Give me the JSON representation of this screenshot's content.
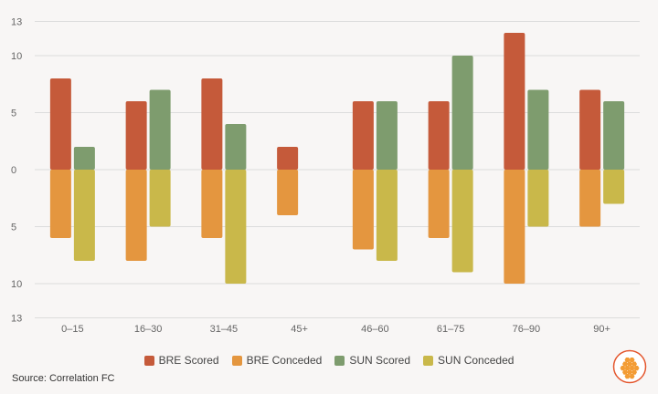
{
  "chart_data": {
    "type": "bar",
    "categories": [
      "0–15",
      "16–30",
      "31–45",
      "45+",
      "46–60",
      "61–75",
      "76–90",
      "90+"
    ],
    "yticks": [
      {
        "value": 13,
        "label": "13"
      },
      {
        "value": 10,
        "label": "10"
      },
      {
        "value": 5,
        "label": "5"
      },
      {
        "value": 0,
        "label": "0"
      },
      {
        "value": -5,
        "label": "5"
      },
      {
        "value": -10,
        "label": "10"
      },
      {
        "value": -13,
        "label": "13"
      }
    ],
    "ylim": [
      -13,
      13
    ],
    "series": [
      {
        "name": "BRE Scored",
        "color": "#c55a3a",
        "values": [
          8,
          6,
          8,
          2,
          6,
          6,
          12,
          7
        ]
      },
      {
        "name": "BRE Conceded",
        "color": "#e4963f",
        "values": [
          6,
          8,
          6,
          4,
          7,
          6,
          10,
          5
        ]
      },
      {
        "name": "SUN Scored",
        "color": "#7e9c6e",
        "values": [
          2,
          7,
          4,
          null,
          6,
          10,
          7,
          6
        ]
      },
      {
        "name": "SUN Conceded",
        "color": "#c9b84a",
        "values": [
          8,
          5,
          10,
          null,
          8,
          9,
          5,
          3
        ]
      }
    ],
    "legend_position": "bottom"
  },
  "source": "Source: Correlation FC",
  "logo": {
    "name": "honeycomb-logo-icon",
    "color": "#e4572e"
  }
}
